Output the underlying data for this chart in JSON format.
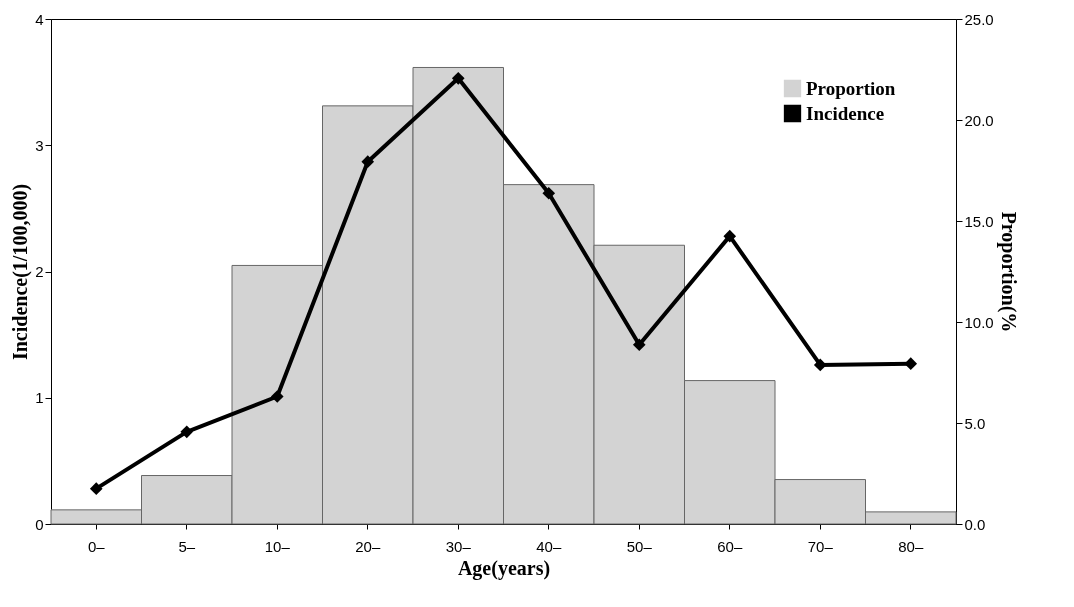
{
  "chart_data": {
    "type": "bar",
    "xlabel": "Age(years)",
    "ylabel": "Incidence(1/100,000)",
    "y2label": "Proportion(%",
    "categories": [
      "0–",
      "5–",
      "10–",
      "20–",
      "30–",
      "40–",
      "50–",
      "60–",
      "70–",
      "80–"
    ],
    "series": [
      {
        "name": "Proportion",
        "axis": "y2",
        "color": "#d3d3d3",
        "values": [
          0.7,
          2.4,
          12.8,
          20.7,
          22.6,
          16.8,
          13.8,
          7.1,
          2.2,
          0.6
        ]
      },
      {
        "name": "Incidence",
        "type": "line",
        "color": "#000000",
        "marker": "diamond",
        "values": [
          0.28,
          0.73,
          1.01,
          2.87,
          3.53,
          2.62,
          1.42,
          2.28,
          1.26,
          1.27
        ]
      }
    ],
    "ylim": [
      0,
      4
    ],
    "yticks": [
      0,
      1,
      2,
      3,
      4
    ],
    "y2lim": [
      0,
      25
    ],
    "y2ticks": [
      {
        "value": 0,
        "label": "0.0"
      },
      {
        "value": 5,
        "label": "5.0"
      },
      {
        "value": 10,
        "label": "10.0"
      },
      {
        "value": 15,
        "label": "15.0"
      },
      {
        "value": 20,
        "label": "20.0"
      },
      {
        "value": 25,
        "label": "25.0"
      }
    ],
    "grid": false,
    "legend": "top right"
  }
}
